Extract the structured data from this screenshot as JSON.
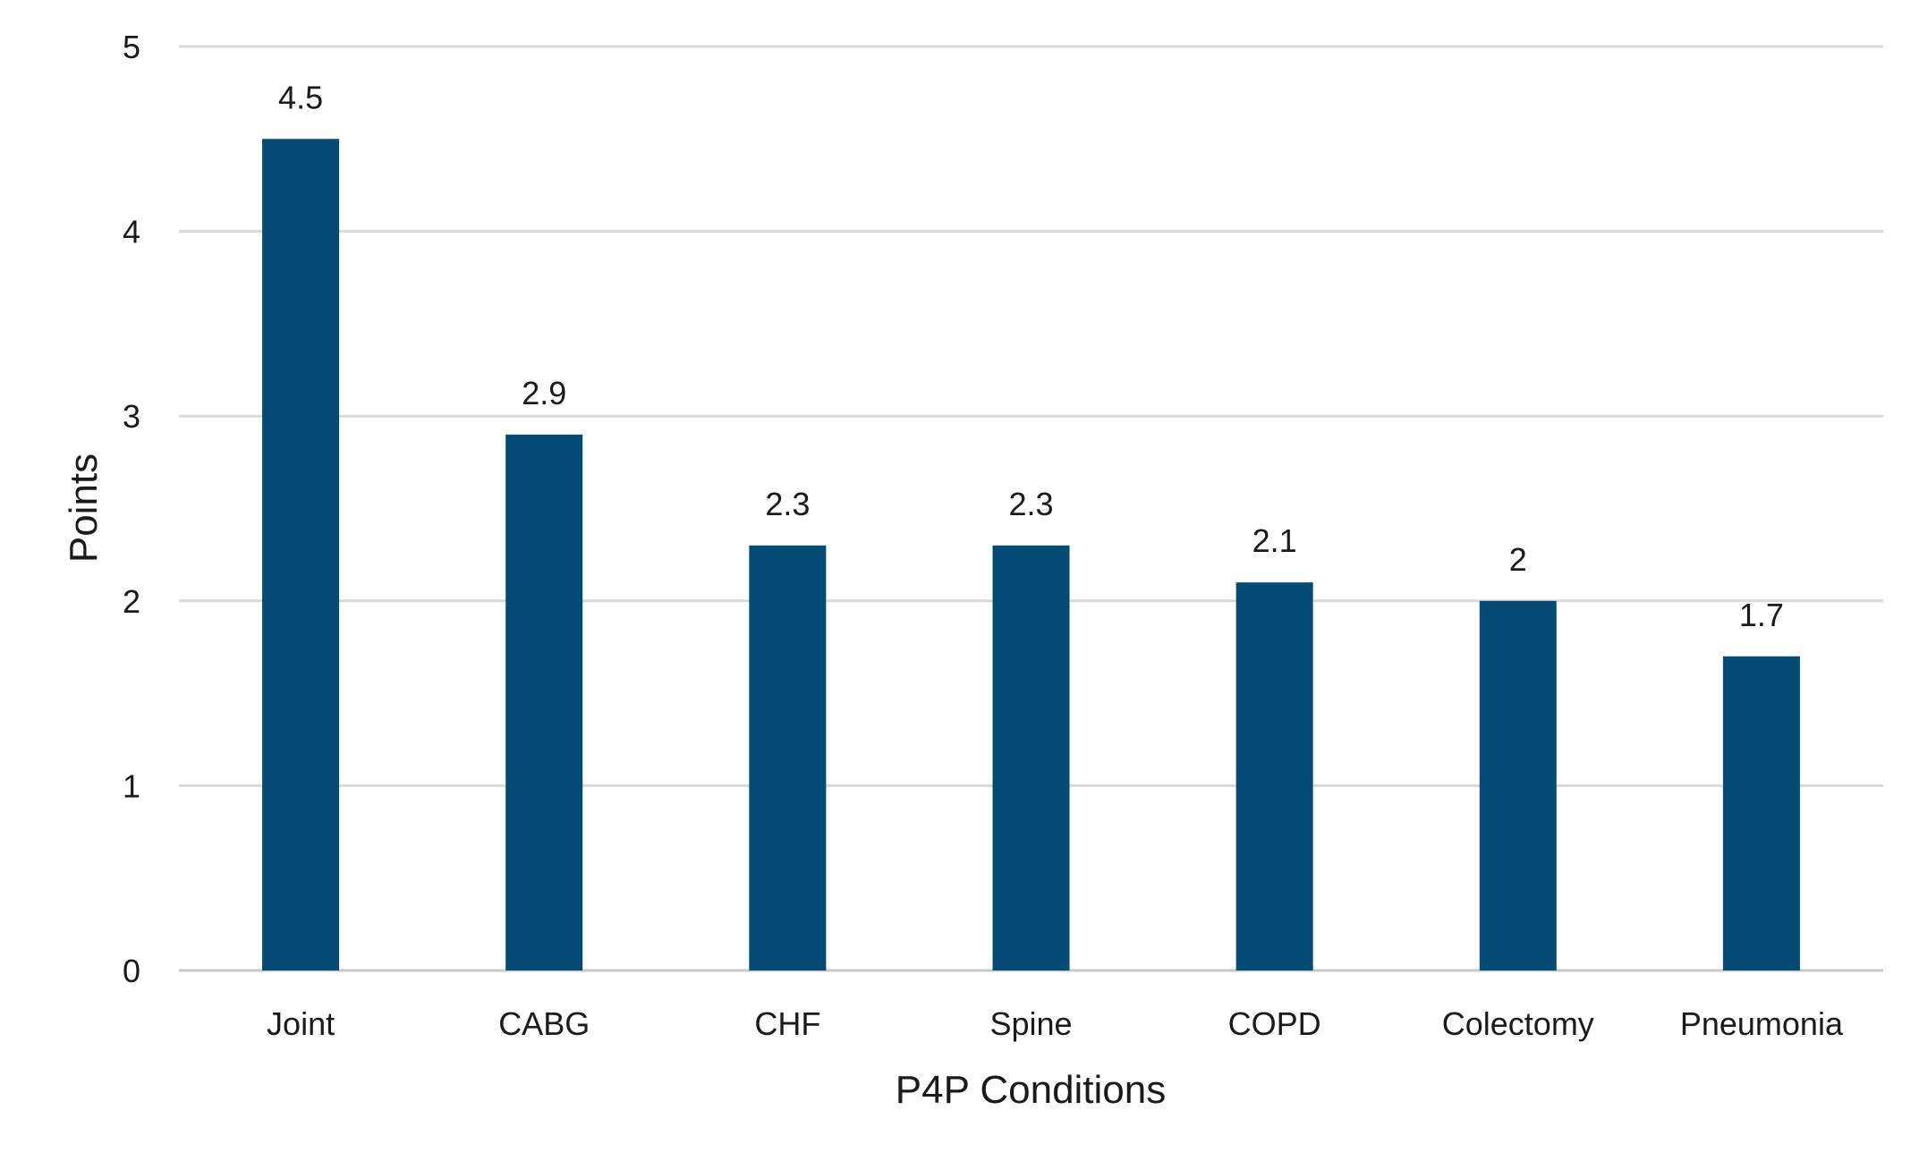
{
  "chart_data": {
    "type": "bar",
    "categories": [
      "Joint",
      "CABG",
      "CHF",
      "Spine",
      "COPD",
      "Colectomy",
      "Pneumonia"
    ],
    "values": [
      4.5,
      2.9,
      2.3,
      2.3,
      2.1,
      2,
      1.7
    ],
    "data_labels": [
      "4.5",
      "2.9",
      "2.3",
      "2.3",
      "2.1",
      "2",
      "1.7"
    ],
    "title": "",
    "xlabel": "P4P Conditions",
    "ylabel": "Points",
    "ylim": [
      0,
      5
    ],
    "yticks": [
      0,
      1,
      2,
      3,
      4,
      5
    ],
    "ytick_labels": [
      "0",
      "1",
      "2",
      "3",
      "4",
      "5"
    ],
    "grid": true,
    "legend": "none",
    "bar_color": "#034b75"
  }
}
